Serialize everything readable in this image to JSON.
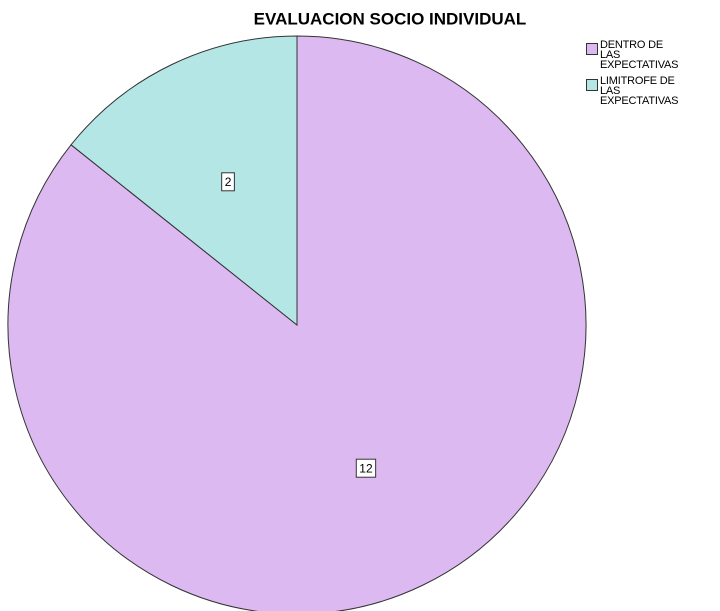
{
  "chart_data": {
    "type": "pie",
    "title": "EVALUACION SOCIO INDIVIDUAL",
    "categories": [
      "DENTRO DE LAS EXPECTATIVAS",
      "LIMITROFE DE LAS EXPECTATIVAS"
    ],
    "values": [
      12,
      2
    ],
    "colors": [
      "#ddb9f2",
      "#b5e6e6"
    ],
    "legend": "top-right"
  }
}
